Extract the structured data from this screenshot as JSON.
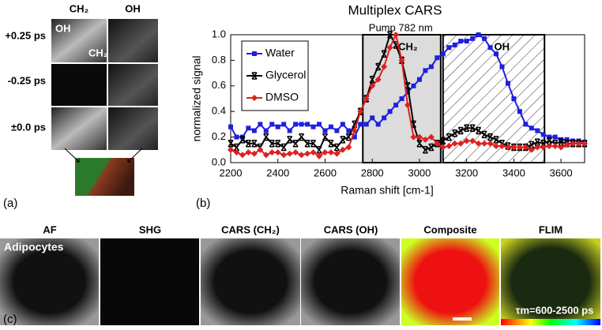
{
  "panel_a": {
    "label": "(a)",
    "columns": [
      "CH₂",
      "OH"
    ],
    "rows": [
      "+0.25 ps",
      "-0.25 ps",
      "±0.0 ps"
    ],
    "inset_labels": [
      "OH",
      "CH₂"
    ]
  },
  "panel_c": {
    "label": "(c)",
    "images": [
      "AF",
      "SHG",
      "CARS (CH₂)",
      "CARS (OH)",
      "Composite",
      "FLIM"
    ],
    "caption": "Adipocytes",
    "flim_note": "τm=600-2500 ps"
  },
  "chart_data": {
    "type": "line",
    "panel_label": "(b)",
    "title": "Multiplex CARS",
    "annotation": "Pump 782 nm",
    "x_label": "Raman shift [cm-1]",
    "y_label": "normalized signal",
    "xlim": [
      2200,
      3700
    ],
    "ylim": [
      0,
      1
    ],
    "xticks": [
      2200,
      2400,
      2600,
      2800,
      3000,
      3200,
      3400,
      3600
    ],
    "yticks": [
      {
        "value": 0,
        "label": "0.0"
      },
      0.2,
      0.4,
      0.6,
      0.8,
      {
        "value": 1,
        "label": "1.0"
      }
    ],
    "legend": "upper left",
    "regions": [
      {
        "label": "CH₂",
        "range": [
          2760,
          3090
        ],
        "fill": "#dcdcdc",
        "hatch": false
      },
      {
        "label": "OH",
        "range": [
          3100,
          3530
        ],
        "fill": "none",
        "hatch": true
      }
    ],
    "x": [
      2200,
      2225,
      2250,
      2275,
      2300,
      2325,
      2350,
      2375,
      2400,
      2425,
      2450,
      2475,
      2500,
      2525,
      2550,
      2575,
      2600,
      2625,
      2650,
      2675,
      2700,
      2725,
      2750,
      2775,
      2800,
      2825,
      2850,
      2875,
      2900,
      2925,
      2950,
      2975,
      3000,
      3025,
      3050,
      3075,
      3100,
      3125,
      3150,
      3175,
      3200,
      3225,
      3250,
      3275,
      3300,
      3325,
      3350,
      3375,
      3400,
      3425,
      3450,
      3475,
      3500,
      3525,
      3550,
      3575,
      3600,
      3625,
      3650,
      3675,
      3700
    ],
    "series": [
      {
        "name": "Water",
        "color": "#1f1fe0",
        "marker": "square",
        "values": [
          0.28,
          0.2,
          0.2,
          0.27,
          0.25,
          0.3,
          0.25,
          0.3,
          0.28,
          0.3,
          0.25,
          0.3,
          0.3,
          0.3,
          0.28,
          0.3,
          0.25,
          0.28,
          0.25,
          0.3,
          0.25,
          0.2,
          0.3,
          0.3,
          0.35,
          0.3,
          0.35,
          0.4,
          0.45,
          0.5,
          0.55,
          0.6,
          0.65,
          0.72,
          0.75,
          0.82,
          0.85,
          0.9,
          0.92,
          0.95,
          0.95,
          0.97,
          1.0,
          0.97,
          0.9,
          0.85,
          0.75,
          0.62,
          0.5,
          0.4,
          0.3,
          0.27,
          0.25,
          0.22,
          0.2,
          0.2,
          0.18,
          0.18,
          0.17,
          0.17,
          0.16
        ]
      },
      {
        "name": "Glycerol",
        "color": "#000000",
        "marker": "x",
        "values": [
          0.15,
          0.12,
          0.18,
          0.15,
          0.15,
          0.12,
          0.2,
          0.15,
          0.15,
          0.12,
          0.18,
          0.15,
          0.2,
          0.15,
          0.15,
          0.1,
          0.2,
          0.15,
          0.12,
          0.18,
          0.2,
          0.3,
          0.4,
          0.5,
          0.65,
          0.75,
          0.85,
          1.0,
          0.92,
          0.8,
          0.6,
          0.3,
          0.15,
          0.1,
          0.12,
          0.15,
          0.17,
          0.2,
          0.23,
          0.25,
          0.27,
          0.27,
          0.25,
          0.22,
          0.2,
          0.18,
          0.15,
          0.13,
          0.12,
          0.12,
          0.12,
          0.14,
          0.16,
          0.15,
          0.17,
          0.15,
          0.16,
          0.15,
          0.15,
          0.15,
          0.15
        ]
      },
      {
        "name": "DMSO",
        "color": "#e02020",
        "marker": "diamond",
        "values": [
          0.1,
          0.08,
          0.06,
          0.08,
          0.07,
          0.1,
          0.06,
          0.08,
          0.08,
          0.06,
          0.07,
          0.08,
          0.06,
          0.07,
          0.08,
          0.05,
          0.08,
          0.08,
          0.07,
          0.1,
          0.12,
          0.25,
          0.4,
          0.5,
          0.6,
          0.65,
          0.75,
          0.9,
          1.0,
          0.8,
          0.45,
          0.2,
          0.2,
          0.18,
          0.2,
          0.15,
          0.12,
          0.13,
          0.15,
          0.15,
          0.17,
          0.17,
          0.15,
          0.15,
          0.15,
          0.13,
          0.13,
          0.12,
          0.12,
          0.12,
          0.12,
          0.1,
          0.12,
          0.12,
          0.13,
          0.13,
          0.12,
          0.14,
          0.15,
          0.15,
          0.15
        ]
      }
    ]
  }
}
